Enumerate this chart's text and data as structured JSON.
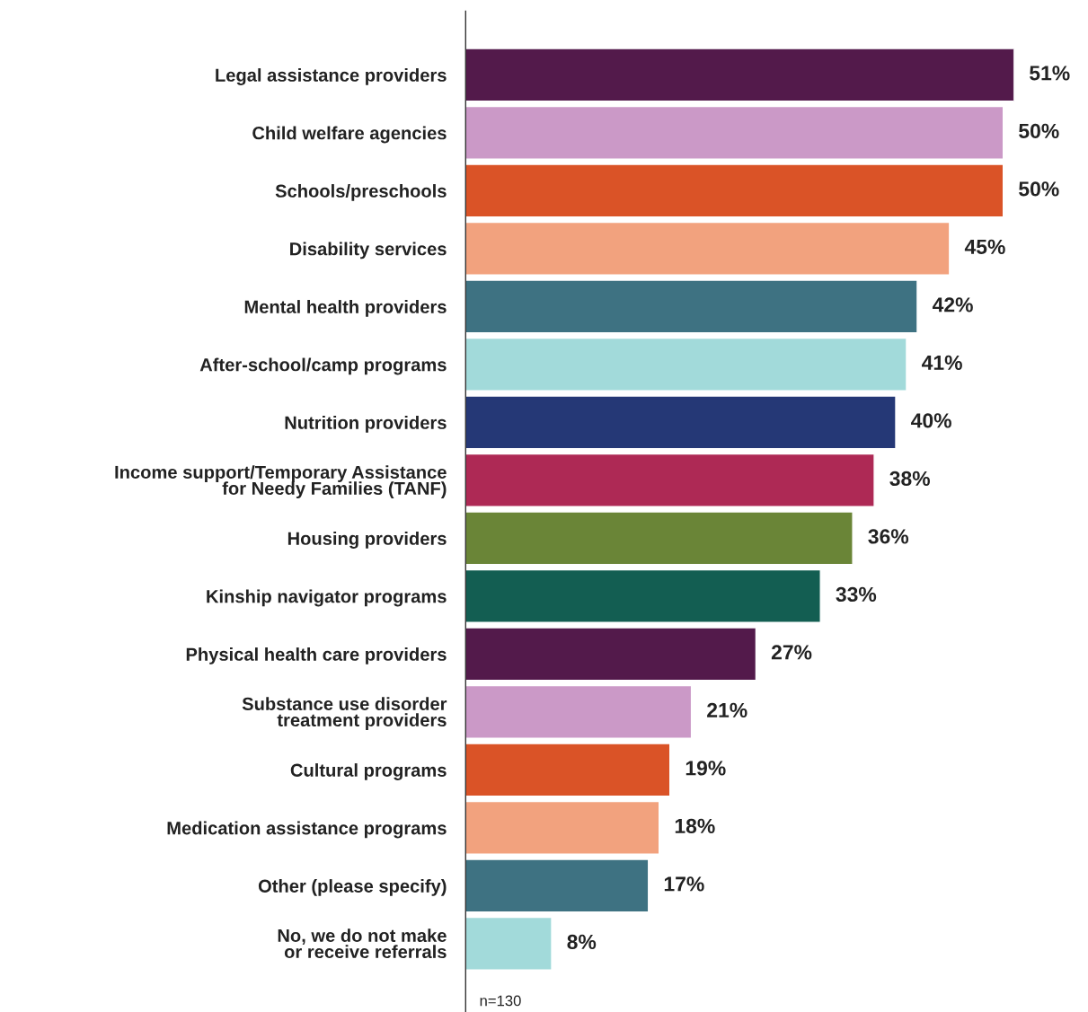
{
  "chart_data": {
    "type": "bar",
    "orientation": "horizontal",
    "categories": [
      "Legal assistance providers",
      "Child welfare agencies",
      "Schools/preschools",
      "Disability services",
      "Mental health providers",
      "After-school/camp programs",
      "Nutrition providers",
      "Income support/Temporary Assistance\nfor Needy Families (TANF)",
      "Housing providers",
      "Kinship navigator programs",
      "Physical health care providers",
      "Substance use disorder\ntreatment providers",
      "Cultural programs",
      "Medication assistance programs",
      "Other (please specify)",
      "No, we do not make\nor receive referrals"
    ],
    "values": [
      51,
      50,
      50,
      45,
      42,
      41,
      40,
      38,
      36,
      33,
      27,
      21,
      19,
      18,
      17,
      8
    ],
    "colors": [
      "#531a4b",
      "#cb99c7",
      "#da5327",
      "#f2a27e",
      "#3e7282",
      "#a2dada",
      "#253876",
      "#ae2955",
      "#6a8537",
      "#135e52",
      "#531a4b",
      "#cb99c7",
      "#da5327",
      "#f2a27e",
      "#3e7282",
      "#a2dada"
    ],
    "value_labels": [
      "51%",
      "50%",
      "50%",
      "45%",
      "42%",
      "41%",
      "40%",
      "38%",
      "36%",
      "33%",
      "27%",
      "21%",
      "19%",
      "18%",
      "17%",
      "8%"
    ],
    "grid": false,
    "annotations": [
      "n=130"
    ]
  }
}
